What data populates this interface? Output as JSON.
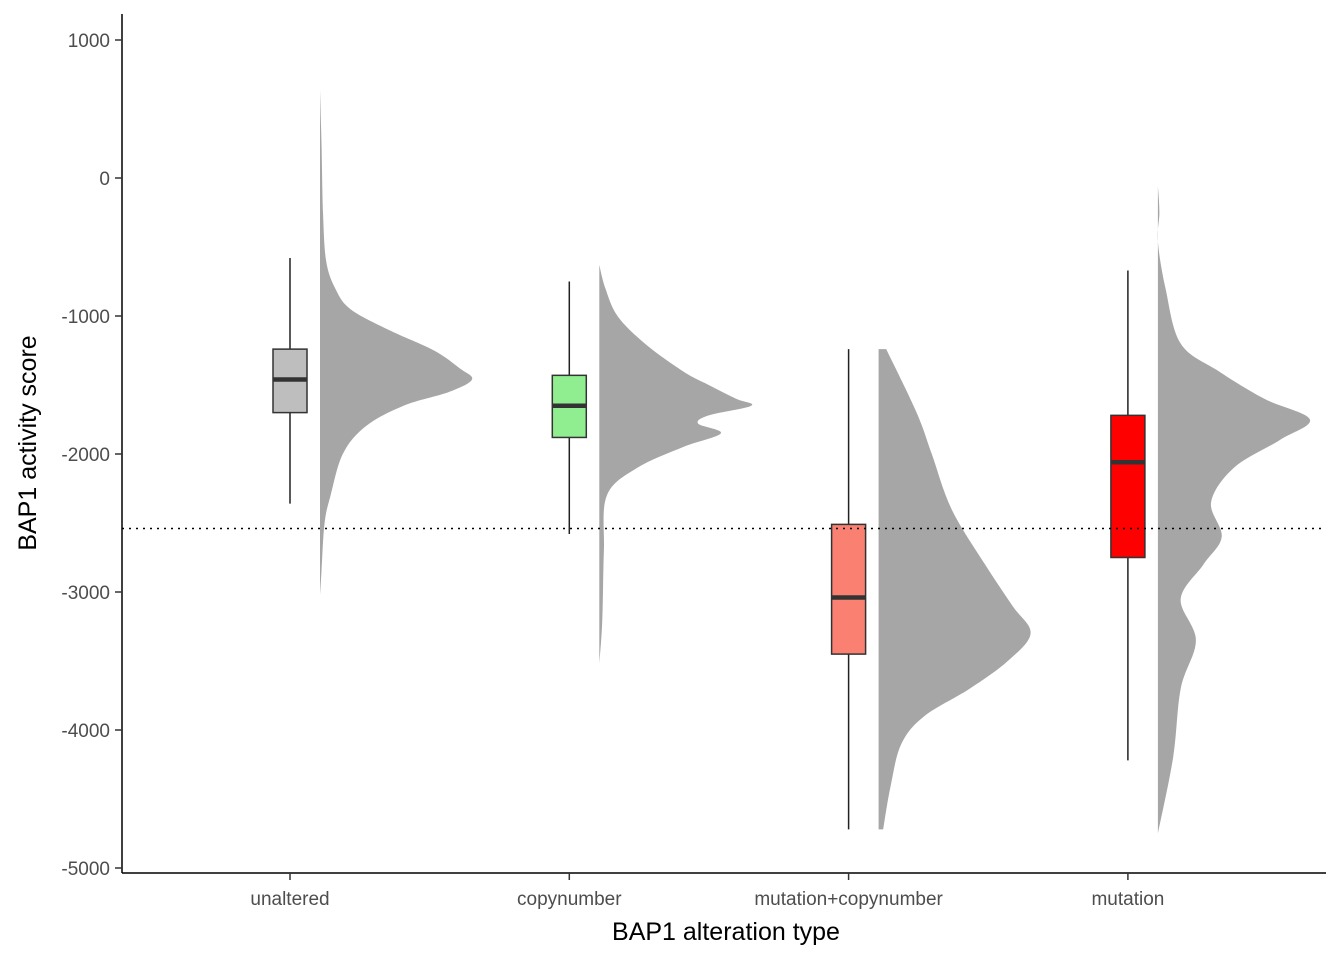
{
  "chart_data": {
    "type": "boxplot-halfviolin",
    "title": "",
    "xlabel": "BAP1 alteration type",
    "ylabel": "BAP1 activity score",
    "ylim": [
      -5050,
      1180
    ],
    "y_ticks": [
      1000,
      0,
      -1000,
      -2000,
      -3000,
      -4000,
      -5000
    ],
    "y_tick_labels": [
      "1000",
      "0",
      "-1000",
      "-2000",
      "-3000",
      "-4000",
      "-5000"
    ],
    "reference_line": {
      "y": -2540,
      "style": "dotted"
    },
    "grid": false,
    "legend": "none",
    "violin_color": "#a6a6a6",
    "categories": [
      "unaltered",
      "copynumber",
      "mutation+copynumber",
      "mutation"
    ],
    "groups": [
      {
        "category": "unaltered",
        "color": "#bebebe",
        "box": {
          "whisker_low": -2360,
          "q1": -1700,
          "median": -1460,
          "q3": -1240,
          "whisker_high": -580
        },
        "density": [
          [
            640,
            0.0
          ],
          [
            250,
            0.01
          ],
          [
            -250,
            0.02
          ],
          [
            -600,
            0.04
          ],
          [
            -800,
            0.1
          ],
          [
            -950,
            0.2
          ],
          [
            -1100,
            0.45
          ],
          [
            -1250,
            0.75
          ],
          [
            -1380,
            0.92
          ],
          [
            -1460,
            1.0
          ],
          [
            -1550,
            0.85
          ],
          [
            -1650,
            0.55
          ],
          [
            -1800,
            0.3
          ],
          [
            -2000,
            0.15
          ],
          [
            -2300,
            0.07
          ],
          [
            -2500,
            0.03
          ],
          [
            -2850,
            0.01
          ],
          [
            -3020,
            0.0
          ]
        ]
      },
      {
        "category": "copynumber",
        "color": "#90ee90",
        "box": {
          "whisker_low": -2580,
          "q1": -1880,
          "median": -1650,
          "q3": -1430,
          "whisker_high": -750
        },
        "density": [
          [
            -630,
            0.0
          ],
          [
            -800,
            0.04
          ],
          [
            -1000,
            0.12
          ],
          [
            -1200,
            0.3
          ],
          [
            -1400,
            0.55
          ],
          [
            -1500,
            0.72
          ],
          [
            -1600,
            0.9
          ],
          [
            -1650,
            1.0
          ],
          [
            -1720,
            0.72
          ],
          [
            -1780,
            0.65
          ],
          [
            -1850,
            0.8
          ],
          [
            -1950,
            0.55
          ],
          [
            -2100,
            0.25
          ],
          [
            -2300,
            0.05
          ],
          [
            -2700,
            0.03
          ],
          [
            -3200,
            0.02
          ],
          [
            -3520,
            0.0
          ]
        ]
      },
      {
        "category": "mutation+copynumber",
        "color": "#fa8072",
        "box": {
          "whisker_low": -4720,
          "q1": -3450,
          "median": -3040,
          "q3": -2510,
          "whisker_high": -1240
        },
        "density": [
          [
            -1240,
            0.05
          ],
          [
            -1700,
            0.25
          ],
          [
            -2000,
            0.35
          ],
          [
            -2400,
            0.48
          ],
          [
            -2800,
            0.7
          ],
          [
            -3100,
            0.88
          ],
          [
            -3300,
            1.0
          ],
          [
            -3500,
            0.85
          ],
          [
            -3700,
            0.6
          ],
          [
            -3900,
            0.3
          ],
          [
            -4100,
            0.15
          ],
          [
            -4400,
            0.08
          ],
          [
            -4720,
            0.03
          ]
        ]
      },
      {
        "category": "mutation",
        "color": "#ff0000",
        "box": {
          "whisker_low": -4220,
          "q1": -2750,
          "median": -2060,
          "q3": -1720,
          "whisker_high": -670
        },
        "density": [
          [
            -60,
            0.0
          ],
          [
            -250,
            0.01
          ],
          [
            -460,
            0.0
          ],
          [
            -800,
            0.05
          ],
          [
            -1200,
            0.15
          ],
          [
            -1400,
            0.4
          ],
          [
            -1600,
            0.7
          ],
          [
            -1750,
            1.0
          ],
          [
            -1900,
            0.8
          ],
          [
            -2100,
            0.5
          ],
          [
            -2350,
            0.35
          ],
          [
            -2600,
            0.42
          ],
          [
            -2800,
            0.3
          ],
          [
            -3050,
            0.15
          ],
          [
            -3350,
            0.25
          ],
          [
            -3700,
            0.15
          ],
          [
            -4200,
            0.1
          ],
          [
            -4750,
            0.0
          ]
        ]
      }
    ]
  }
}
